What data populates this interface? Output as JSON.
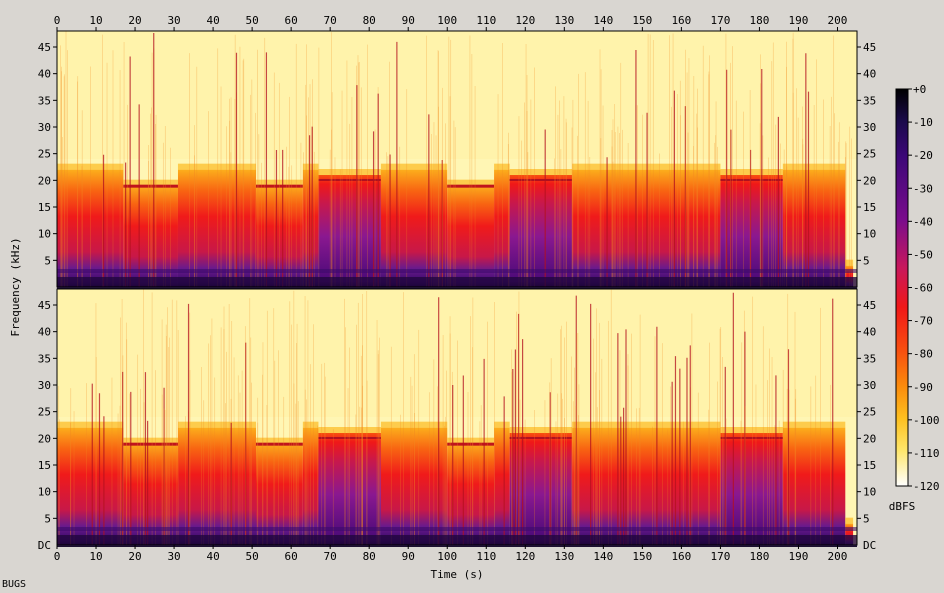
{
  "footer_label": "BUGS",
  "chart_data": {
    "type": "heatmap",
    "xlabel": "Time (s)",
    "ylabel": "Frequency (kHz)",
    "xlim": [
      0,
      205
    ],
    "ylim": [
      0,
      48
    ],
    "x_ticks": [
      0,
      10,
      20,
      30,
      40,
      50,
      60,
      70,
      80,
      90,
      100,
      110,
      120,
      130,
      140,
      150,
      160,
      170,
      180,
      190,
      200
    ],
    "y_ticks": [
      "5",
      "10",
      "15",
      "20",
      "25",
      "30",
      "35",
      "40",
      "45"
    ],
    "y_tick_values": [
      5,
      10,
      15,
      20,
      25,
      30,
      35,
      40,
      45
    ],
    "dc_label": "DC",
    "channels": [
      {
        "channel": "upper"
      },
      {
        "channel": "lower"
      }
    ],
    "colorbar": {
      "label": "dBFS",
      "ticks": [
        "+0",
        "-10",
        "-20",
        "-30",
        "-40",
        "-50",
        "-60",
        "-70",
        "-80",
        "-90",
        "-100",
        "-110",
        "-120"
      ],
      "tick_values": [
        0,
        -10,
        -20,
        -30,
        -40,
        -50,
        -60,
        -70,
        -80,
        -90,
        -100,
        -110,
        -120
      ],
      "range": [
        -120,
        0
      ],
      "colors": [
        "#000000",
        "#1a0a4a",
        "#3c0878",
        "#6a0a8a",
        "#9a0f8a",
        "#d01a5a",
        "#f01818",
        "#f85010",
        "#fb8c0c",
        "#fdc020",
        "#fee66a",
        "#fff6b0",
        "#ffffff"
      ]
    },
    "segments": [
      {
        "start": 0,
        "end": 17,
        "cutoff_khz": 22
      },
      {
        "start": 17,
        "end": 31,
        "cutoff_khz": 19
      },
      {
        "start": 31,
        "end": 51,
        "cutoff_khz": 22
      },
      {
        "start": 51,
        "end": 63,
        "cutoff_khz": 19
      },
      {
        "start": 63,
        "end": 67,
        "cutoff_khz": 22
      },
      {
        "start": 67,
        "end": 83,
        "cutoff_khz": 21
      },
      {
        "start": 83,
        "end": 100,
        "cutoff_khz": 22
      },
      {
        "start": 100,
        "end": 112,
        "cutoff_khz": 19
      },
      {
        "start": 112,
        "end": 116,
        "cutoff_khz": 22
      },
      {
        "start": 116,
        "end": 132,
        "cutoff_khz": 21
      },
      {
        "start": 132,
        "end": 170,
        "cutoff_khz": 22
      },
      {
        "start": 170,
        "end": 186,
        "cutoff_khz": 21
      },
      {
        "start": 186,
        "end": 202,
        "cutoff_khz": 22
      },
      {
        "start": 202,
        "end": 204,
        "cutoff_khz": 4
      }
    ]
  }
}
